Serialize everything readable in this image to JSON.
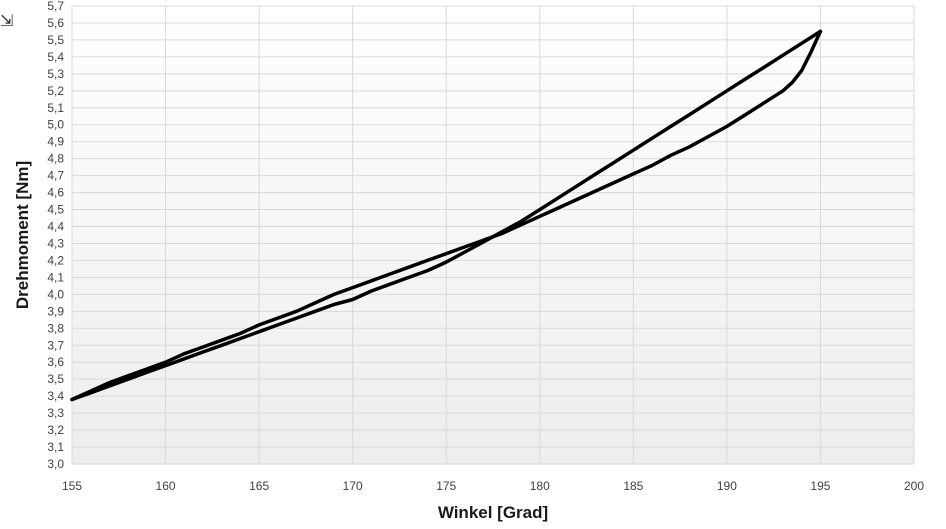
{
  "chart_data": {
    "type": "line",
    "title": "",
    "xlabel": "Winkel [Grad]",
    "ylabel": "Drehmoment [Nm]",
    "xlim": [
      155,
      200
    ],
    "ylim": [
      3.0,
      5.7
    ],
    "x_ticks": [
      "155",
      "160",
      "165",
      "170",
      "175",
      "180",
      "185",
      "190",
      "195",
      "200"
    ],
    "y_ticks": [
      "3,0",
      "3,1",
      "3,2",
      "3,3",
      "3,4",
      "3,5",
      "3,6",
      "3,7",
      "3,8",
      "3,9",
      "4,0",
      "4,1",
      "4,2",
      "4,3",
      "4,4",
      "4,5",
      "4,6",
      "4,7",
      "4,8",
      "4,9",
      "5,0",
      "5,1",
      "5,2",
      "5,3",
      "5,4",
      "5,5",
      "5,6",
      "5,7"
    ],
    "grid": true,
    "legend": "none",
    "line_color": "#000000",
    "series": [
      {
        "values_x": [
          155,
          156,
          157,
          158,
          159,
          160,
          161,
          162,
          163,
          164,
          165,
          166,
          167,
          168,
          169,
          170,
          171,
          172,
          173,
          174,
          175,
          176,
          177,
          178,
          179,
          180,
          181,
          182,
          183,
          184,
          185,
          186,
          187,
          188,
          189,
          190,
          191,
          192,
          193,
          194,
          195
        ],
        "values_y": [
          3.38,
          3.42,
          3.46,
          3.5,
          3.54,
          3.58,
          3.62,
          3.66,
          3.7,
          3.74,
          3.78,
          3.82,
          3.86,
          3.9,
          3.94,
          3.97,
          4.02,
          4.06,
          4.1,
          4.14,
          4.19,
          4.25,
          4.31,
          4.37,
          4.43,
          4.5,
          4.57,
          4.64,
          4.71,
          4.78,
          4.85,
          4.92,
          4.99,
          5.06,
          5.13,
          5.2,
          5.27,
          5.34,
          5.41,
          5.48,
          5.55
        ]
      },
      {
        "values_x": [
          195,
          194.5,
          194,
          193.5,
          193,
          192,
          191,
          190,
          189,
          188,
          187,
          186,
          185,
          184,
          183,
          182,
          181,
          180,
          179,
          178,
          177,
          176,
          175,
          174,
          173,
          172,
          171,
          170,
          169,
          168,
          167,
          166,
          165,
          164,
          163,
          162,
          161,
          160,
          159,
          158,
          157,
          156,
          155
        ],
        "values_y": [
          5.55,
          5.43,
          5.32,
          5.25,
          5.2,
          5.13,
          5.06,
          4.99,
          4.93,
          4.87,
          4.82,
          4.76,
          4.71,
          4.66,
          4.61,
          4.56,
          4.51,
          4.46,
          4.41,
          4.36,
          4.32,
          4.28,
          4.24,
          4.2,
          4.16,
          4.12,
          4.08,
          4.04,
          4.0,
          3.95,
          3.9,
          3.86,
          3.82,
          3.77,
          3.73,
          3.69,
          3.65,
          3.6,
          3.56,
          3.52,
          3.48,
          3.43,
          3.38
        ]
      }
    ]
  }
}
